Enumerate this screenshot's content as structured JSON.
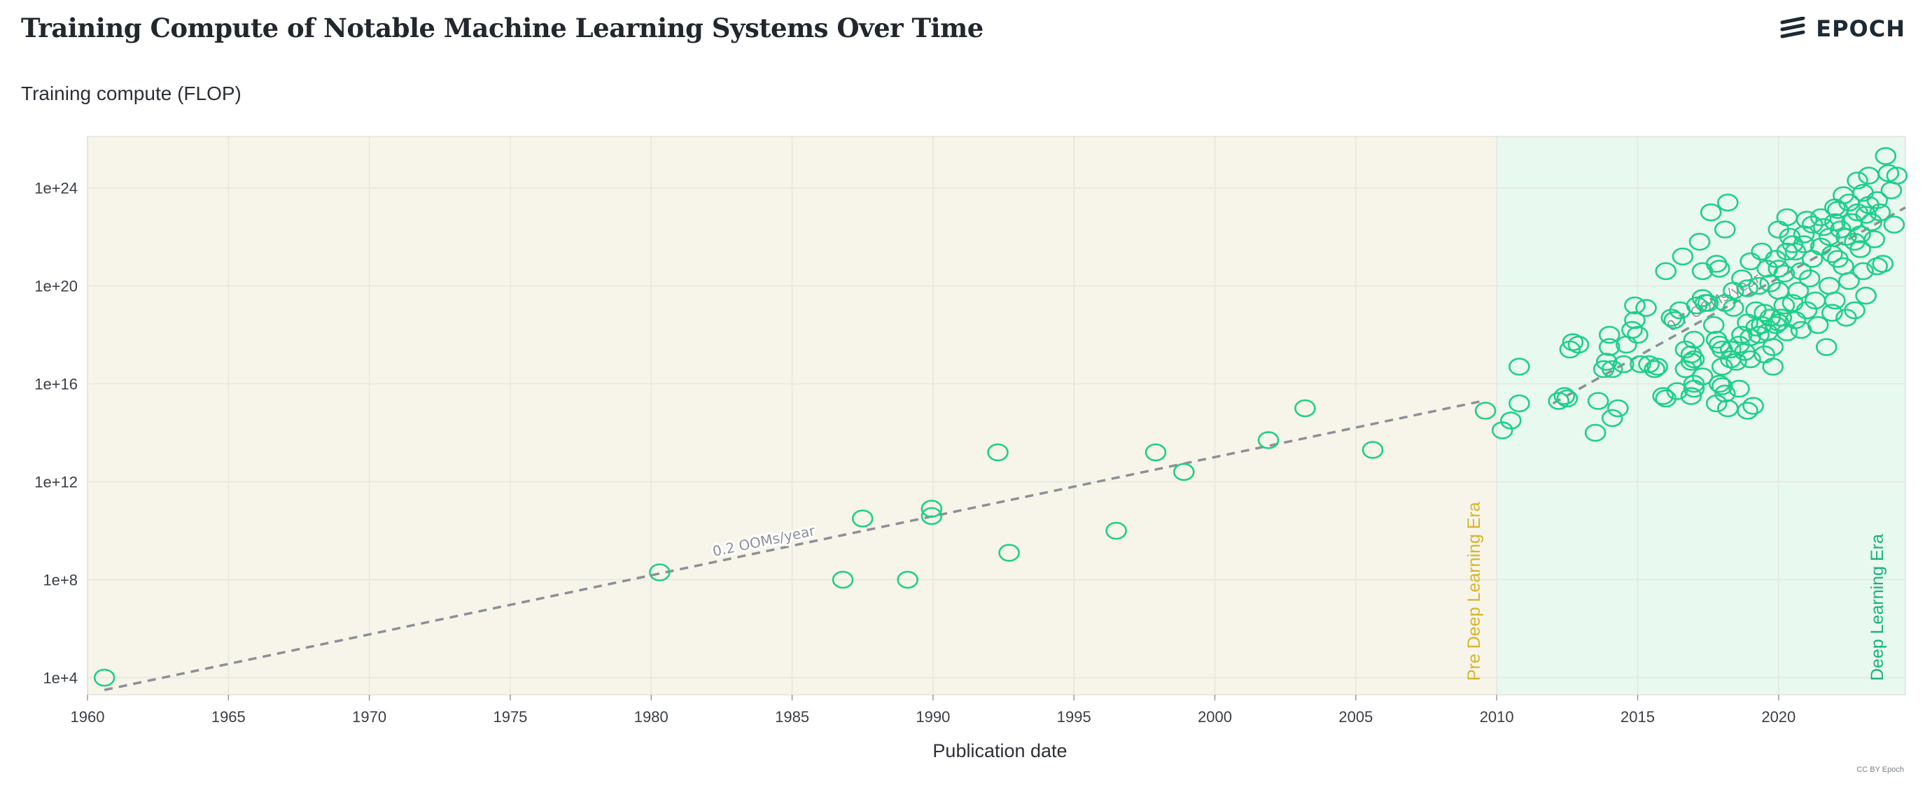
{
  "header": {
    "title": "Training Compute of Notable Machine Learning Systems Over Time",
    "y_axis_label": "Training compute (FLOP)",
    "brand": "EPOCH",
    "credit": "CC BY Epoch"
  },
  "colors": {
    "pre_era_bg": "#f7f5ea",
    "dl_era_bg": "#e8f9ef",
    "point": "#1ecf8a",
    "trend": "#8c9096",
    "pre_era_label": "#d8b42a",
    "dl_era_label": "#18b27a",
    "grid": "#e6e6e0"
  },
  "chart_data": {
    "type": "scatter",
    "title": "Training Compute of Notable Machine Learning Systems Over Time",
    "xlabel": "Publication date",
    "ylabel": "Training compute (FLOP)",
    "xlim": [
      1960,
      2024.5
    ],
    "ylim_log10": [
      3.3,
      26.1
    ],
    "y_scale": "log",
    "grid": true,
    "x_ticks": [
      1960,
      1965,
      1970,
      1975,
      1980,
      1985,
      1990,
      1995,
      2000,
      2005,
      2010,
      2015,
      2020
    ],
    "y_ticks": [
      {
        "log10": 4,
        "label": "1e+4"
      },
      {
        "log10": 8,
        "label": "1e+8"
      },
      {
        "log10": 12,
        "label": "1e+12"
      },
      {
        "log10": 16,
        "label": "1e+16"
      },
      {
        "log10": 20,
        "label": "1e+20"
      },
      {
        "log10": 24,
        "label": "1e+24"
      }
    ],
    "eras": [
      {
        "name": "Pre Deep Learning Era",
        "x_range": [
          1960,
          2010
        ]
      },
      {
        "name": "Deep Learning Era",
        "x_range": [
          2010,
          2024.5
        ]
      }
    ],
    "trends": [
      {
        "label": "0.2 OOMs/year",
        "x": [
          1960.6,
          2009.5
        ],
        "y_log10": [
          3.5,
          15.3
        ]
      },
      {
        "label": "0.7 OOMs/year",
        "x": [
          2012,
          2024.5
        ],
        "y_log10": [
          15.2,
          23.2
        ]
      }
    ],
    "points": [
      [
        1960.6,
        4.0
      ],
      [
        1980.3,
        8.3
      ],
      [
        1986.8,
        8.0
      ],
      [
        1987.5,
        10.5
      ],
      [
        1989.1,
        8.0
      ],
      [
        1989.95,
        10.9
      ],
      [
        1989.95,
        10.6
      ],
      [
        1992.3,
        13.2
      ],
      [
        1992.7,
        9.1
      ],
      [
        1996.5,
        10.0
      ],
      [
        1997.9,
        13.2
      ],
      [
        1998.9,
        12.4
      ],
      [
        2001.9,
        13.7
      ],
      [
        2003.2,
        15.0
      ],
      [
        2005.6,
        13.3
      ],
      [
        2009.6,
        14.9
      ],
      [
        2010.2,
        14.1
      ],
      [
        2010.5,
        14.5
      ],
      [
        2010.8,
        15.2
      ],
      [
        2010.8,
        16.7
      ],
      [
        2012.2,
        15.3
      ],
      [
        2012.4,
        15.5
      ],
      [
        2012.5,
        15.4
      ],
      [
        2012.6,
        17.4
      ],
      [
        2012.7,
        17.7
      ],
      [
        2012.9,
        17.6
      ],
      [
        2013.5,
        14.0
      ],
      [
        2013.6,
        15.3
      ],
      [
        2013.8,
        16.6
      ],
      [
        2013.9,
        16.9
      ],
      [
        2014.0,
        17.5
      ],
      [
        2014.0,
        18.0
      ],
      [
        2014.1,
        16.6
      ],
      [
        2014.1,
        14.6
      ],
      [
        2014.3,
        15.0
      ],
      [
        2014.5,
        16.8
      ],
      [
        2014.6,
        17.6
      ],
      [
        2014.8,
        18.2
      ],
      [
        2014.9,
        19.2
      ],
      [
        2014.9,
        18.6
      ],
      [
        2015.0,
        18.0
      ],
      [
        2015.1,
        16.8
      ],
      [
        2015.3,
        19.1
      ],
      [
        2015.4,
        16.8
      ],
      [
        2015.6,
        16.6
      ],
      [
        2015.7,
        16.7
      ],
      [
        2015.9,
        15.5
      ],
      [
        2016.0,
        15.4
      ],
      [
        2016.0,
        20.6
      ],
      [
        2016.2,
        18.7
      ],
      [
        2016.3,
        18.6
      ],
      [
        2016.4,
        15.7
      ],
      [
        2016.5,
        19.0
      ],
      [
        2016.6,
        21.2
      ],
      [
        2016.7,
        16.6
      ],
      [
        2016.7,
        17.4
      ],
      [
        2016.9,
        15.5
      ],
      [
        2016.9,
        16.9
      ],
      [
        2016.9,
        17.2
      ],
      [
        2017.0,
        15.8
      ],
      [
        2017.0,
        16.0
      ],
      [
        2017.0,
        17.0
      ],
      [
        2017.0,
        17.8
      ],
      [
        2017.1,
        19.2
      ],
      [
        2017.2,
        21.8
      ],
      [
        2017.3,
        19.5
      ],
      [
        2017.3,
        16.3
      ],
      [
        2017.3,
        20.6
      ],
      [
        2017.4,
        19.3
      ],
      [
        2017.5,
        19.3
      ],
      [
        2017.6,
        23.0
      ],
      [
        2017.7,
        18.4
      ],
      [
        2017.8,
        17.8
      ],
      [
        2017.8,
        20.9
      ],
      [
        2017.8,
        15.2
      ],
      [
        2017.9,
        17.6
      ],
      [
        2017.9,
        16.0
      ],
      [
        2017.9,
        20.7
      ],
      [
        2018.0,
        15.9
      ],
      [
        2018.0,
        16.7
      ],
      [
        2018.0,
        17.4
      ],
      [
        2018.1,
        19.3
      ],
      [
        2018.1,
        15.6
      ],
      [
        2018.1,
        22.3
      ],
      [
        2018.2,
        23.4
      ],
      [
        2018.2,
        15.0
      ],
      [
        2018.3,
        17.0
      ],
      [
        2018.3,
        17.4
      ],
      [
        2018.4,
        19.1
      ],
      [
        2018.4,
        19.8
      ],
      [
        2018.5,
        16.9
      ],
      [
        2018.6,
        17.6
      ],
      [
        2018.6,
        15.8
      ],
      [
        2018.7,
        20.3
      ],
      [
        2018.7,
        18.0
      ],
      [
        2018.8,
        17.3
      ],
      [
        2018.9,
        14.9
      ],
      [
        2018.9,
        18.5
      ],
      [
        2018.9,
        19.9
      ],
      [
        2019.0,
        21.0
      ],
      [
        2019.0,
        17.0
      ],
      [
        2019.0,
        17.9
      ],
      [
        2019.1,
        15.1
      ],
      [
        2019.2,
        18.3
      ],
      [
        2019.2,
        19.0
      ],
      [
        2019.3,
        18.0
      ],
      [
        2019.3,
        20.0
      ],
      [
        2019.4,
        18.4
      ],
      [
        2019.4,
        21.4
      ],
      [
        2019.5,
        18.9
      ],
      [
        2019.5,
        17.2
      ],
      [
        2019.6,
        18.1
      ],
      [
        2019.6,
        20.7
      ],
      [
        2019.7,
        18.7
      ],
      [
        2019.7,
        20.1
      ],
      [
        2019.8,
        16.7
      ],
      [
        2019.8,
        17.5
      ],
      [
        2019.9,
        18.4
      ],
      [
        2019.9,
        21.1
      ],
      [
        2020.0,
        18.5
      ],
      [
        2020.0,
        19.8
      ],
      [
        2020.0,
        20.7
      ],
      [
        2020.0,
        22.3
      ],
      [
        2020.1,
        18.7
      ],
      [
        2020.2,
        19.2
      ],
      [
        2020.2,
        20.5
      ],
      [
        2020.3,
        22.8
      ],
      [
        2020.3,
        18.1
      ],
      [
        2020.3,
        21.4
      ],
      [
        2020.4,
        22.0
      ],
      [
        2020.5,
        19.3
      ],
      [
        2020.5,
        21.7
      ],
      [
        2020.6,
        18.6
      ],
      [
        2020.7,
        19.8
      ],
      [
        2020.8,
        20.6
      ],
      [
        2020.8,
        18.2
      ],
      [
        2020.9,
        21.7
      ],
      [
        2021.0,
        22.7
      ],
      [
        2021.0,
        19.0
      ],
      [
        2021.1,
        20.3
      ],
      [
        2021.2,
        21.1
      ],
      [
        2021.3,
        19.4
      ],
      [
        2021.4,
        18.4
      ],
      [
        2021.5,
        21.6
      ],
      [
        2021.6,
        22.4
      ],
      [
        2021.7,
        17.5
      ],
      [
        2021.8,
        20.0
      ],
      [
        2021.8,
        22.0
      ],
      [
        2021.9,
        21.3
      ],
      [
        2021.9,
        18.9
      ],
      [
        2022.0,
        22.6
      ],
      [
        2022.0,
        19.4
      ],
      [
        2022.1,
        23.1
      ],
      [
        2022.1,
        21.1
      ],
      [
        2022.2,
        22.3
      ],
      [
        2022.3,
        23.7
      ],
      [
        2022.3,
        20.8
      ],
      [
        2022.4,
        22.0
      ],
      [
        2022.4,
        18.7
      ],
      [
        2022.5,
        23.4
      ],
      [
        2022.5,
        20.2
      ],
      [
        2022.6,
        22.6
      ],
      [
        2022.7,
        21.8
      ],
      [
        2022.7,
        19.0
      ],
      [
        2022.8,
        23.0
      ],
      [
        2022.8,
        24.3
      ],
      [
        2022.9,
        22.1
      ],
      [
        2022.9,
        21.5
      ],
      [
        2023.0,
        20.6
      ],
      [
        2023.1,
        22.9
      ],
      [
        2023.1,
        19.6
      ],
      [
        2023.2,
        24.5
      ],
      [
        2023.2,
        23.3
      ],
      [
        2023.3,
        22.6
      ],
      [
        2023.4,
        21.9
      ],
      [
        2023.5,
        20.8
      ],
      [
        2023.5,
        23.5
      ],
      [
        2023.6,
        23.0
      ],
      [
        2023.7,
        20.9
      ],
      [
        2023.8,
        25.3
      ],
      [
        2023.9,
        24.6
      ],
      [
        2024.0,
        23.9
      ],
      [
        2024.1,
        22.5
      ],
      [
        2024.2,
        24.5
      ],
      [
        2023.0,
        23.8
      ],
      [
        2022.0,
        23.2
      ],
      [
        2021.5,
        22.8
      ],
      [
        2021.2,
        22.5
      ],
      [
        2020.9,
        22.1
      ],
      [
        2020.6,
        21.4
      ]
    ]
  }
}
